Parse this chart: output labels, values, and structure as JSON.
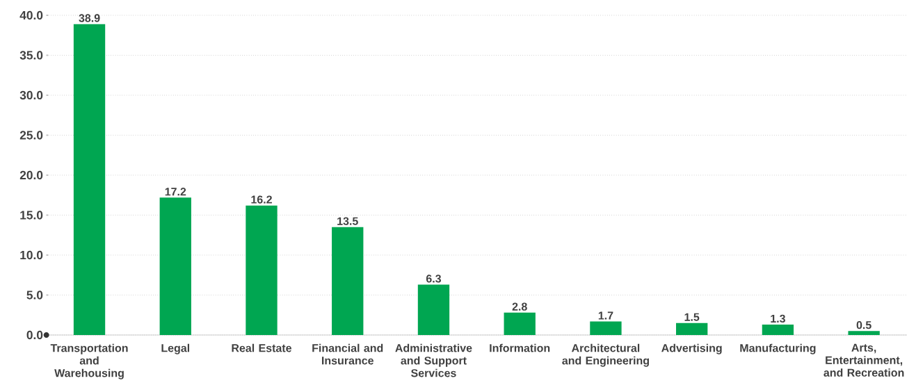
{
  "chart_data": {
    "type": "bar",
    "categories": [
      "Transportation and Warehousing",
      "Legal",
      "Real Estate",
      "Financial and Insurance",
      "Administrative and Support Services",
      "Information",
      "Architectural and Engineering",
      "Advertising",
      "Manufacturing",
      "Arts, Entertainment, and Recreation"
    ],
    "values": [
      38.9,
      17.2,
      16.2,
      13.5,
      6.3,
      2.8,
      1.7,
      1.5,
      1.3,
      0.5
    ],
    "color": "#00a651",
    "ylim": [
      0,
      40
    ],
    "yticks": [
      {
        "value": 0,
        "label": "0.0"
      },
      {
        "value": 5,
        "label": "5.0"
      },
      {
        "value": 10,
        "label": "10.0"
      },
      {
        "value": 15,
        "label": "15.0"
      },
      {
        "value": 20,
        "label": "20.0"
      },
      {
        "value": 25,
        "label": "25.0"
      },
      {
        "value": 30,
        "label": "30.0"
      },
      {
        "value": 35,
        "label": "35.0"
      },
      {
        "value": 40,
        "label": "40.0"
      }
    ],
    "grid": "y",
    "data_labels": true
  }
}
